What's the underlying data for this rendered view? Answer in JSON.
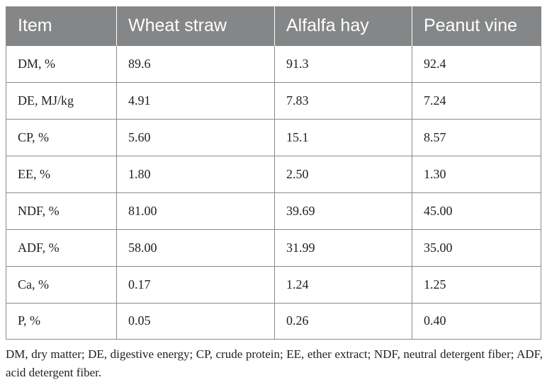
{
  "table": {
    "headers": [
      "Item",
      "Wheat straw",
      "Alfalfa hay",
      "Peanut vine"
    ],
    "rows": [
      [
        "DM, %",
        "89.6",
        "91.3",
        "92.4"
      ],
      [
        "DE, MJ/kg",
        "4.91",
        "7.83",
        "7.24"
      ],
      [
        "CP, %",
        "5.60",
        "15.1",
        "8.57"
      ],
      [
        "EE, %",
        "1.80",
        "2.50",
        "1.30"
      ],
      [
        "NDF, %",
        "81.00",
        "39.69",
        "45.00"
      ],
      [
        "ADF, %",
        "58.00",
        "31.99",
        "35.00"
      ],
      [
        "Ca, %",
        "0.17",
        "1.24",
        "1.25"
      ],
      [
        "P, %",
        "0.05",
        "0.26",
        "0.40"
      ]
    ]
  },
  "footnote": "DM, dry matter; DE, digestive energy; CP, crude protein; EE, ether extract; NDF, neutral detergent fiber; ADF, acid detergent fiber.",
  "colors": {
    "header_background": "#858687",
    "header_text": "#ffffff",
    "cell_border": "#8a8a8a",
    "body_text": "#222222"
  }
}
